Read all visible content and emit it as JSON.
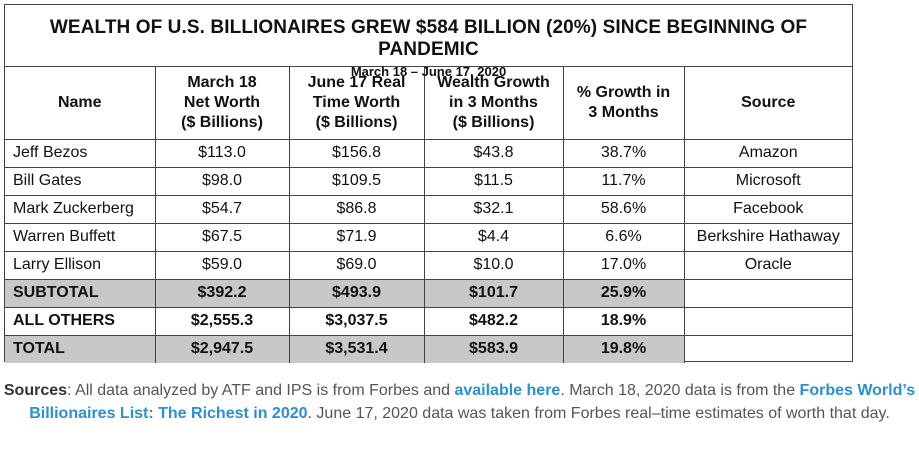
{
  "title": "WEALTH OF U.S. BILLIONAIRES GREW $584 BILLION (20%) SINCE BEGINNING OF PANDEMIC",
  "subtitle": "March 18 – June 17, 2020",
  "headers": [
    "Name",
    "March 18\nNet Worth\n($ Billions)",
    "June 17 Real\nTime Worth\n($ Billions)",
    "Wealth Growth\nin 3 Months\n($ Billions)",
    "% Growth in\n3 Months",
    "Source"
  ],
  "rows": [
    {
      "name": "Jeff Bezos",
      "march": "$113.0",
      "june": "$156.8",
      "growth": "$43.8",
      "pct": "38.7%",
      "source": "Amazon"
    },
    {
      "name": "Bill Gates",
      "march": "$98.0",
      "june": "$109.5",
      "growth": "$11.5",
      "pct": "11.7%",
      "source": "Microsoft"
    },
    {
      "name": "Mark Zuckerberg",
      "march": "$54.7",
      "june": "$86.8",
      "growth": "$32.1",
      "pct": "58.6%",
      "source": "Facebook"
    },
    {
      "name": "Warren Buffett",
      "march": "$67.5",
      "june": "$71.9",
      "growth": "$4.4",
      "pct": "6.6%",
      "source": "Berkshire Hathaway"
    },
    {
      "name": "Larry Ellison",
      "march": "$59.0",
      "june": "$69.0",
      "growth": "$10.0",
      "pct": "17.0%",
      "source": "Oracle"
    }
  ],
  "summary_rows": [
    {
      "name": "SUBTOTAL",
      "march": "$392.2",
      "june": "$493.9",
      "growth": "$101.7",
      "pct": "25.9%",
      "source": ""
    },
    {
      "name": "ALL OTHERS",
      "march": "$2,555.3",
      "june": "$3,037.5",
      "growth": "$482.2",
      "pct": "18.9%",
      "source": ""
    },
    {
      "name": "TOTAL",
      "march": "$2,947.5",
      "june": "$3,531.4",
      "growth": "$583.9",
      "pct": "19.8%",
      "source": ""
    }
  ],
  "shade_color": "#c8c8c8",
  "link_color": "#2b8fd6",
  "sources": {
    "label": "Sources",
    "text1": ": All data analyzed by ATF and IPS is from Forbes and ",
    "link1": "available here",
    "text2": ". March 18, 2020 data is from the ",
    "link2": "Forbes World’s Billionaires List: The Richest in 2020",
    "text3": ". June 17, 2020 data was taken from Forbes real–time estimates of worth that day."
  }
}
